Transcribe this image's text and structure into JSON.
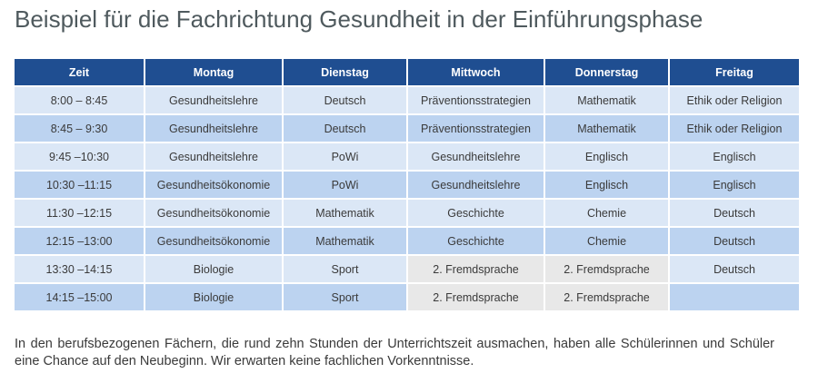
{
  "title": "Beispiel für die Fachrichtung Gesundheit in der Einführungsphase",
  "table": {
    "headers": [
      "Zeit",
      "Montag",
      "Dienstag",
      "Mittwoch",
      "Donnerstag",
      "Freitag"
    ],
    "rows": [
      [
        "8:00 – 8:45",
        "Gesundheitslehre",
        "Deutsch",
        "Präventionsstrategien",
        "Mathematik",
        "Ethik oder Religion"
      ],
      [
        "8:45 – 9:30",
        "Gesundheitslehre",
        "Deutsch",
        "Präventionsstrategien",
        "Mathematik",
        "Ethik oder Religion"
      ],
      [
        "9:45 –10:30",
        "Gesundheitslehre",
        "PoWi",
        "Gesundheitslehre",
        "Englisch",
        "Englisch"
      ],
      [
        "10:30 –11:15",
        "Gesundheitsökonomie",
        "PoWi",
        "Gesundheitslehre",
        "Englisch",
        "Englisch"
      ],
      [
        "11:30 –12:15",
        "Gesundheitsökonomie",
        "Mathematik",
        "Geschichte",
        "Chemie",
        "Deutsch"
      ],
      [
        "12:15 –13:00",
        "Gesundheitsökonomie",
        "Mathematik",
        "Geschichte",
        "Chemie",
        "Deutsch"
      ],
      [
        "13:30 –14:15",
        "Biologie",
        "Sport",
        "2. Fremdsprache",
        "2. Fremdsprache",
        "Deutsch"
      ],
      [
        "14:15 –15:00",
        "Biologie",
        "Sport",
        "2. Fremdsprache",
        "2. Fremdsprache",
        ""
      ]
    ]
  },
  "note": "In den berufsbezogenen Fächern, die rund zehn Stunden der Unterrichtszeit ausmachen, haben alle Schülerinnen und Schüler eine Chance auf den Neubeginn. Wir erwarten keine fachlichen Vorkenntnisse.",
  "colors": {
    "header_bg": "#1f4e91",
    "row_light": "#dbe7f6",
    "row_dark": "#bcd3f0",
    "language_cell": "#e8e8e8"
  }
}
